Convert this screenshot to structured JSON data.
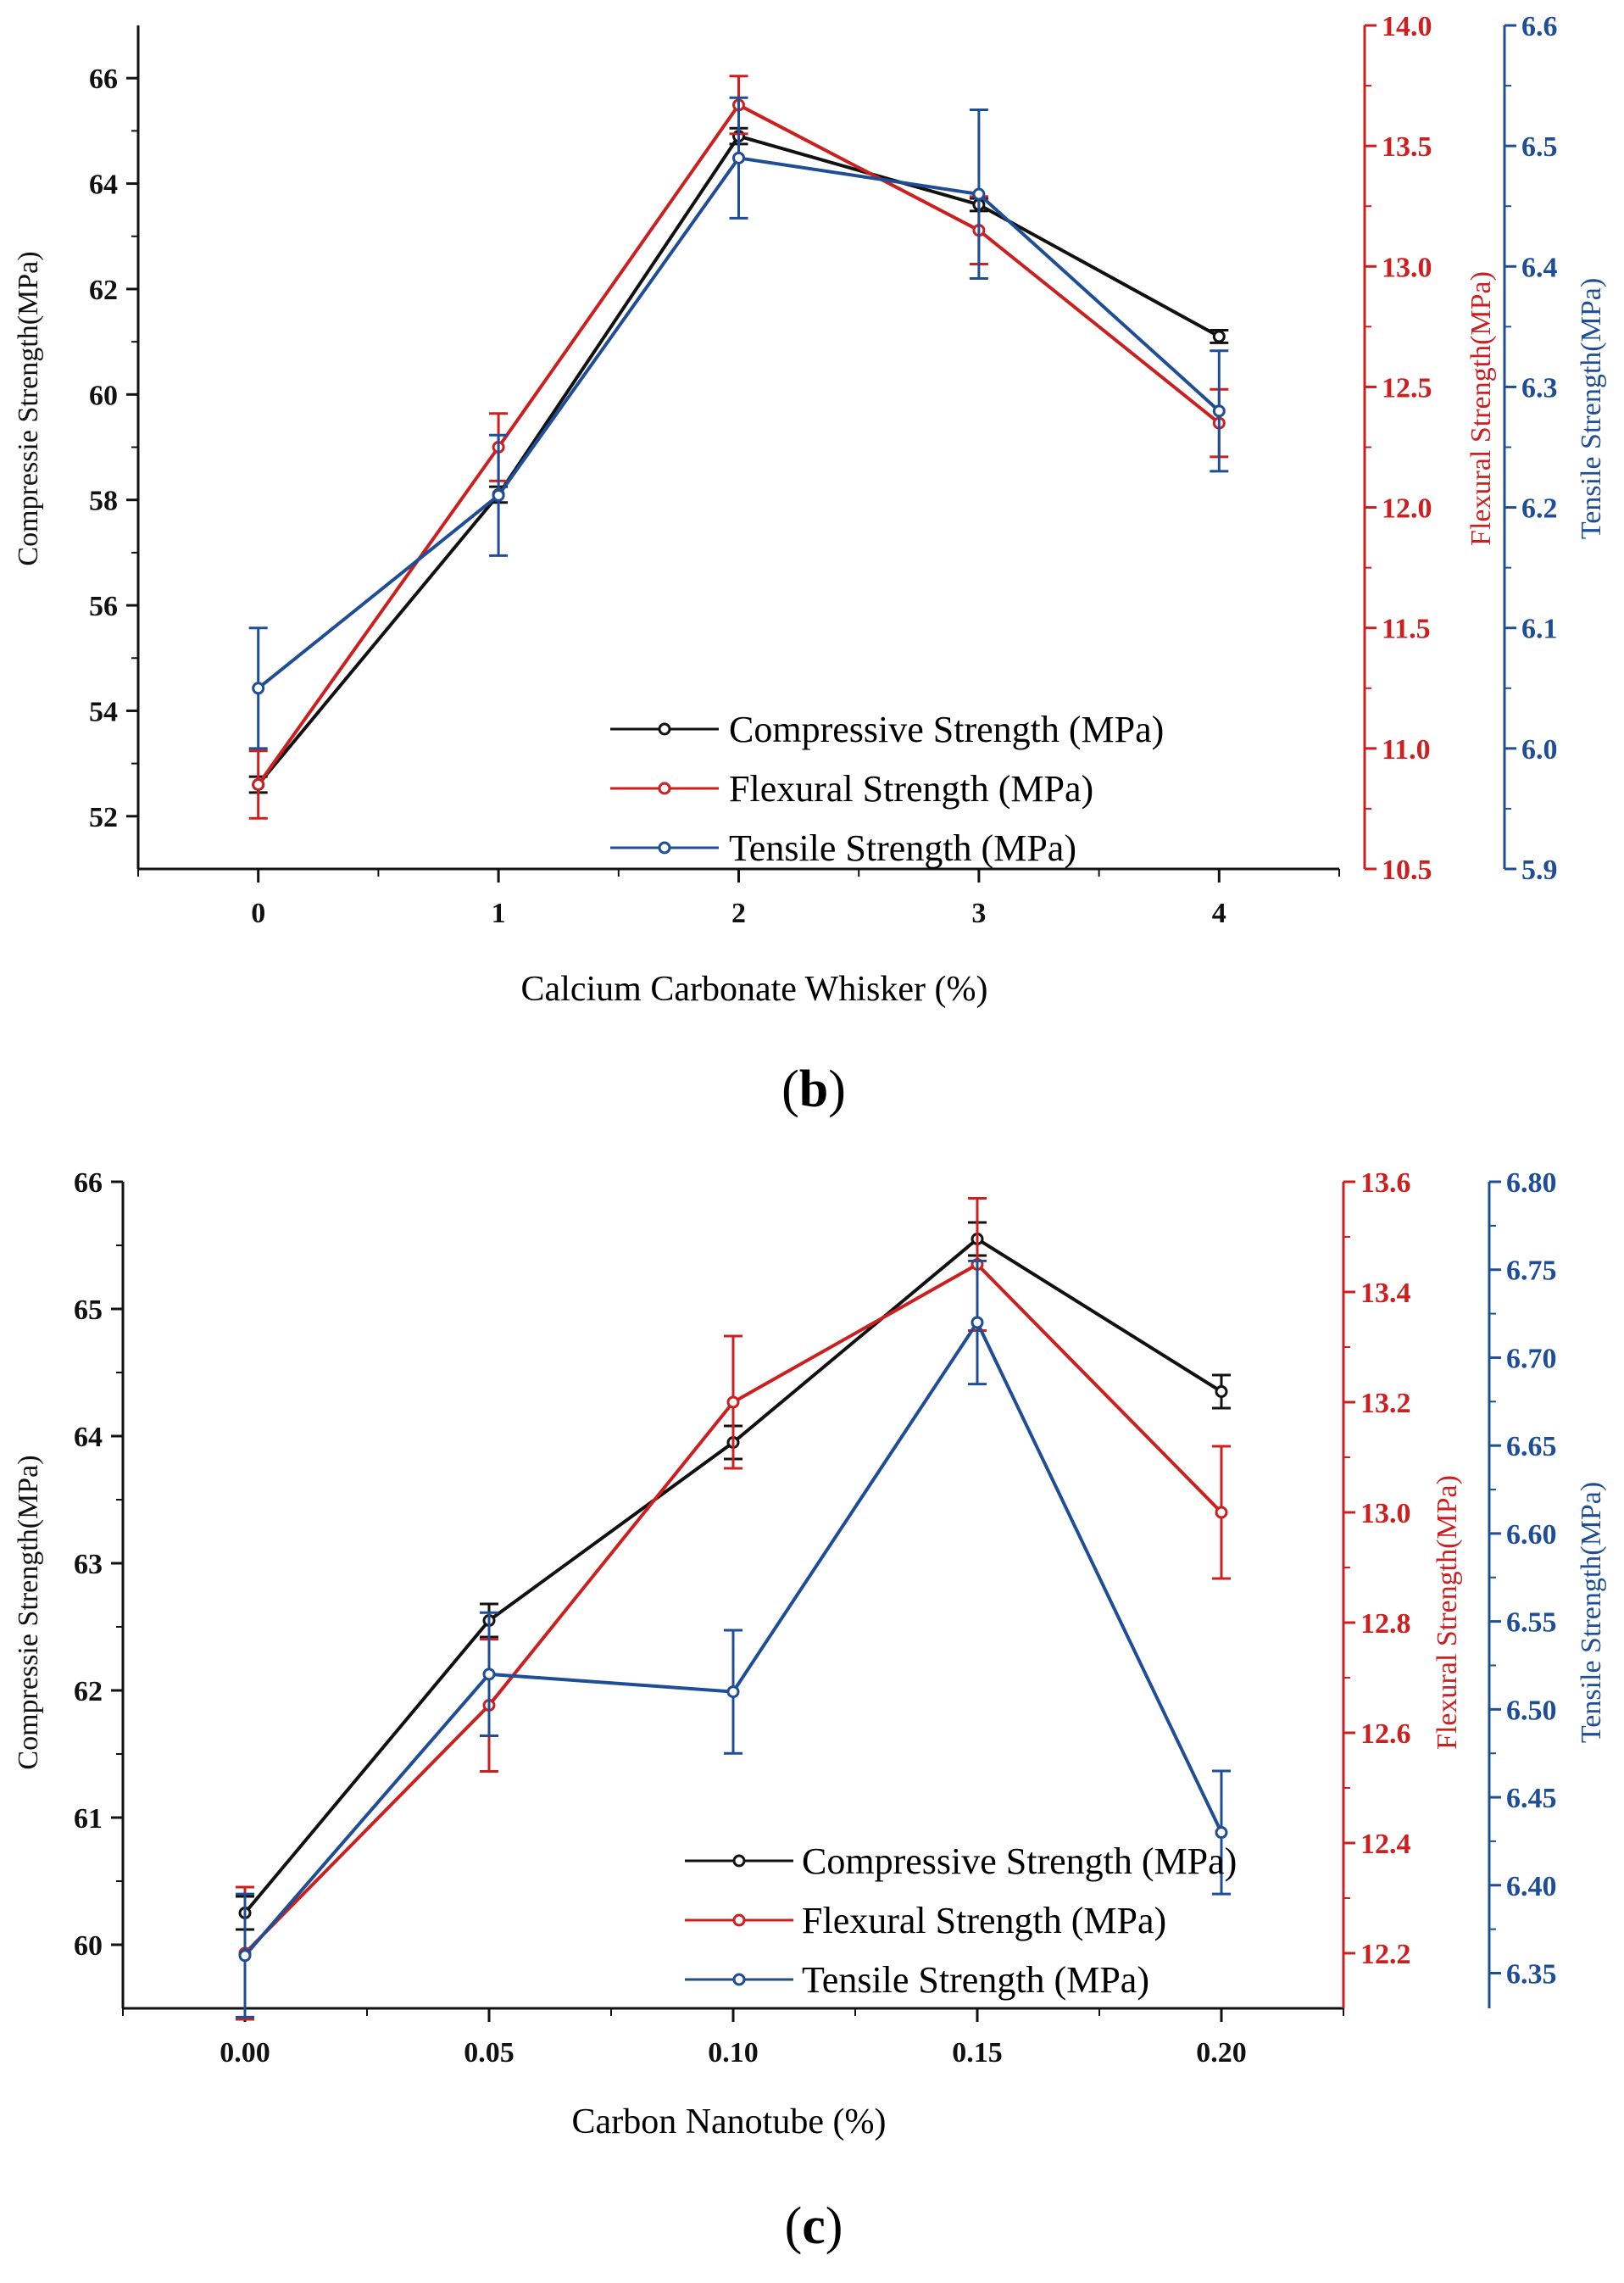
{
  "chart_data": [
    {
      "type": "line",
      "panel_label": "(b)",
      "panel_label_parts": {
        "open": "(",
        "letter": "b",
        "close": ")"
      },
      "xlabel": "Calcium Carbonate Whisker (%)",
      "x": [
        0,
        1,
        2,
        3,
        4
      ],
      "x_ticks": [
        "0",
        "1",
        "2",
        "3",
        "4"
      ],
      "xlim": [
        -0.5,
        4.5
      ],
      "legend_position": "bottom-right",
      "series": [
        {
          "name": "Compressive Strength (MPa)",
          "axis": "left",
          "axis_label": "Compressie Strength(MPa)",
          "color": "#111111",
          "ylim": [
            51,
            67
          ],
          "ticks": [
            52,
            54,
            56,
            58,
            60,
            62,
            64,
            66
          ],
          "tick_labels": [
            "52",
            "54",
            "56",
            "58",
            "60",
            "62",
            "64",
            "66"
          ],
          "values": [
            52.6,
            58.1,
            64.9,
            63.6,
            61.1
          ],
          "errors": [
            0.15,
            0.15,
            0.15,
            0.12,
            0.12
          ]
        },
        {
          "name": "Flexural Strength (MPa)",
          "axis": "right1",
          "axis_label": "Flexural Strength(MPa)",
          "color": "#cc1f1f",
          "ylim": [
            10.5,
            14.0
          ],
          "ticks": [
            10.5,
            11.0,
            11.5,
            12.0,
            12.5,
            13.0,
            13.5,
            14.0
          ],
          "tick_labels": [
            "10.5",
            "11.0",
            "11.5",
            "12.0",
            "12.5",
            "13.0",
            "13.5",
            "14.0"
          ],
          "values": [
            10.85,
            12.25,
            13.67,
            13.15,
            12.35
          ],
          "errors": [
            0.14,
            0.14,
            0.12,
            0.14,
            0.14
          ]
        },
        {
          "name": "Tensile Strength (MPa)",
          "axis": "right2",
          "axis_label": "Tensile Strength(MPa)",
          "color": "#1f4e96",
          "ylim": [
            5.9,
            6.6
          ],
          "ticks": [
            5.9,
            6.0,
            6.1,
            6.2,
            6.3,
            6.4,
            6.5,
            6.6
          ],
          "tick_labels": [
            "5.9",
            "6.0",
            "6.1",
            "6.2",
            "6.3",
            "6.4",
            "6.5",
            "6.6"
          ],
          "values": [
            6.05,
            6.21,
            6.49,
            6.46,
            6.28
          ],
          "errors": [
            0.05,
            0.05,
            0.05,
            0.07,
            0.05
          ]
        }
      ]
    },
    {
      "type": "line",
      "panel_label": "(c)",
      "panel_label_parts": {
        "open": "(",
        "letter": "c",
        "close": ")"
      },
      "xlabel": "Carbon Nanotube (%)",
      "x": [
        0.0,
        0.05,
        0.1,
        0.15,
        0.2
      ],
      "x_ticks": [
        "0.00",
        "0.05",
        "0.10",
        "0.15",
        "0.20"
      ],
      "xlim": [
        -0.025,
        0.225
      ],
      "legend_position": "bottom-right",
      "series": [
        {
          "name": "Compressive Strength (MPa)",
          "axis": "left",
          "axis_label": "Compressie Strength(MPa)",
          "color": "#111111",
          "ylim": [
            59.5,
            66
          ],
          "ticks": [
            60,
            61,
            62,
            63,
            64,
            65,
            66
          ],
          "tick_labels": [
            "60",
            "61",
            "62",
            "63",
            "64",
            "65",
            "66"
          ],
          "values": [
            60.25,
            62.55,
            63.95,
            65.55,
            64.35
          ],
          "errors": [
            0.13,
            0.13,
            0.13,
            0.13,
            0.13
          ]
        },
        {
          "name": "Flexural Strength (MPa)",
          "axis": "right1",
          "axis_label": "Flexural Strength(MPa)",
          "color": "#cc1f1f",
          "ylim": [
            12.1,
            13.6
          ],
          "ticks": [
            12.2,
            12.4,
            12.6,
            12.8,
            13.0,
            13.2,
            13.4,
            13.6
          ],
          "tick_labels": [
            "12.2",
            "12.4",
            "12.6",
            "12.8",
            "13.0",
            "13.2",
            "13.4",
            "13.6"
          ],
          "values": [
            12.2,
            12.65,
            13.2,
            13.45,
            13.0
          ],
          "errors": [
            0.12,
            0.12,
            0.12,
            0.12,
            0.12
          ]
        },
        {
          "name": "Tensile Strength (MPa)",
          "axis": "right2",
          "axis_label": "Tensile Strength(MPa)",
          "color": "#1f4e96",
          "ylim": [
            6.33,
            6.8
          ],
          "ticks": [
            6.35,
            6.4,
            6.45,
            6.5,
            6.55,
            6.6,
            6.65,
            6.7,
            6.75,
            6.8
          ],
          "tick_labels": [
            "6.35",
            "6.40",
            "6.45",
            "6.50",
            "6.55",
            "6.60",
            "6.65",
            "6.70",
            "6.75",
            "6.80"
          ],
          "values": [
            6.36,
            6.52,
            6.51,
            6.72,
            6.43
          ],
          "errors": [
            0.035,
            0.035,
            0.035,
            0.035,
            0.035
          ]
        }
      ]
    }
  ]
}
